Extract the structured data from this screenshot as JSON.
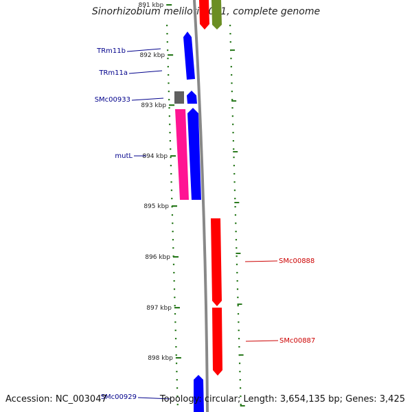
{
  "map": {
    "title": "Sinorhizobium meliloti 1021, complete genome",
    "accession_label": "Accession: NC_003047",
    "info_label": "Topology: circular; Length: 3,654,135 bp; Genes: 3,425"
  },
  "colors": {
    "backbone": "#888888",
    "tick": "#2a7a1e",
    "forward_gene": "#ff0000",
    "reverse_gene": "#0000ff",
    "rna_gene": "#ff1493",
    "other_gene": "#6b8e23",
    "pseudo_gene": "#606060",
    "forward_label": "#cc0000",
    "reverse_label": "#00008b"
  },
  "scale_ticks": [
    {
      "kbp": 891,
      "label": "891 kbp"
    },
    {
      "kbp": 892,
      "label": "892 kbp"
    },
    {
      "kbp": 893,
      "label": "893 kbp"
    },
    {
      "kbp": 894,
      "label": "894 kbp"
    },
    {
      "kbp": 895,
      "label": "895 kbp"
    },
    {
      "kbp": 896,
      "label": "896 kbp"
    },
    {
      "kbp": 897,
      "label": "897 kbp"
    },
    {
      "kbp": 898,
      "label": "898 kbp"
    }
  ],
  "gene_labels": [
    {
      "name": "TRm11b",
      "strand": "reverse"
    },
    {
      "name": "TRm11a",
      "strand": "reverse"
    },
    {
      "name": "SMc00933",
      "strand": "reverse"
    },
    {
      "name": "mutL",
      "strand": "reverse"
    },
    {
      "name": "SMc00888",
      "strand": "forward"
    },
    {
      "name": "SMc00887",
      "strand": "forward"
    },
    {
      "name": "SMc00929",
      "strand": "reverse"
    }
  ]
}
